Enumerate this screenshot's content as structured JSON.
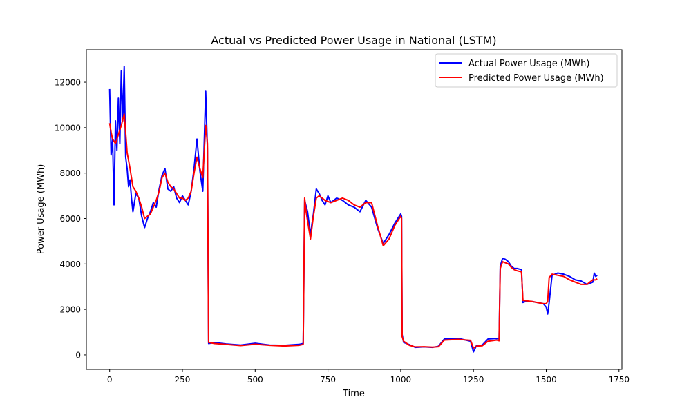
{
  "chart_data": {
    "type": "line",
    "title": "Actual vs Predicted Power Usage in National (LSTM)",
    "xlabel": "Time",
    "ylabel": "Power Usage (MWh)",
    "xlim": [
      -80,
      1760
    ],
    "ylim": [
      -640,
      13430
    ],
    "xticks": [
      0,
      250,
      500,
      750,
      1000,
      1250,
      1500,
      1750
    ],
    "xtick_labels": [
      "0",
      "250",
      "500",
      "750",
      "1000",
      "1250",
      "1500",
      "1750"
    ],
    "yticks": [
      0,
      2000,
      4000,
      6000,
      8000,
      10000,
      12000
    ],
    "ytick_labels": [
      "0",
      "2000",
      "4000",
      "6000",
      "8000",
      "10000",
      "12000"
    ],
    "grid": false,
    "legend_position": "top-right",
    "series": [
      {
        "name": "Actual Power Usage (MWh)",
        "color": "#0000ff",
        "x": [
          0,
          5,
          10,
          15,
          20,
          25,
          30,
          35,
          40,
          45,
          50,
          55,
          60,
          65,
          70,
          75,
          80,
          90,
          100,
          110,
          120,
          130,
          140,
          150,
          160,
          170,
          180,
          190,
          200,
          210,
          220,
          230,
          240,
          250,
          260,
          270,
          280,
          290,
          300,
          310,
          320,
          330,
          336,
          340,
          360,
          400,
          450,
          500,
          550,
          600,
          650,
          665,
          670,
          680,
          690,
          700,
          710,
          720,
          730,
          740,
          750,
          760,
          780,
          800,
          820,
          840,
          860,
          880,
          900,
          920,
          940,
          960,
          980,
          1000,
          1003,
          1005,
          1010,
          1030,
          1050,
          1080,
          1110,
          1130,
          1150,
          1200,
          1240,
          1250,
          1260,
          1280,
          1300,
          1330,
          1338,
          1342,
          1350,
          1360,
          1370,
          1380,
          1390,
          1400,
          1415,
          1420,
          1430,
          1450,
          1470,
          1490,
          1500,
          1505,
          1510,
          1520,
          1540,
          1560,
          1580,
          1600,
          1620,
          1640,
          1660,
          1665,
          1670,
          1675
        ],
        "y": [
          11700,
          8800,
          9500,
          6600,
          10300,
          9000,
          11300,
          9300,
          12500,
          10300,
          12700,
          8700,
          8200,
          7400,
          7700,
          6900,
          6300,
          7100,
          6900,
          6100,
          5600,
          6000,
          6300,
          6700,
          6500,
          7300,
          7900,
          8200,
          7300,
          7200,
          7400,
          6900,
          6700,
          7000,
          6800,
          6600,
          7200,
          8200,
          9500,
          8100,
          7200,
          11600,
          9000,
          500,
          540,
          480,
          430,
          510,
          430,
          420,
          460,
          500,
          6800,
          6300,
          5300,
          6200,
          7300,
          7100,
          6800,
          6600,
          7000,
          6700,
          6900,
          6800,
          6600,
          6500,
          6300,
          6800,
          6500,
          5600,
          4900,
          5300,
          5800,
          6200,
          6100,
          900,
          550,
          450,
          330,
          350,
          330,
          380,
          700,
          720,
          600,
          130,
          400,
          430,
          700,
          720,
          700,
          3900,
          4250,
          4200,
          4100,
          3900,
          3800,
          3800,
          3750,
          2300,
          2350,
          2350,
          2300,
          2250,
          2100,
          1800,
          2300,
          3500,
          3600,
          3550,
          3450,
          3300,
          3250,
          3100,
          3200,
          3600,
          3450,
          3500
        ]
      },
      {
        "name": "Predicted Power Usage (MWh)",
        "color": "#ff0000",
        "x": [
          0,
          5,
          10,
          20,
          30,
          40,
          50,
          55,
          60,
          70,
          80,
          90,
          100,
          110,
          120,
          130,
          140,
          150,
          160,
          170,
          180,
          190,
          200,
          210,
          220,
          230,
          240,
          250,
          260,
          270,
          280,
          290,
          300,
          310,
          320,
          330,
          336,
          340,
          360,
          400,
          450,
          500,
          550,
          600,
          650,
          665,
          670,
          675,
          690,
          700,
          710,
          720,
          740,
          760,
          780,
          800,
          820,
          840,
          860,
          880,
          900,
          920,
          940,
          960,
          980,
          1000,
          1003,
          1005,
          1010,
          1030,
          1050,
          1080,
          1110,
          1130,
          1150,
          1200,
          1240,
          1250,
          1260,
          1280,
          1300,
          1330,
          1338,
          1342,
          1350,
          1360,
          1370,
          1380,
          1390,
          1400,
          1415,
          1420,
          1430,
          1450,
          1470,
          1490,
          1500,
          1505,
          1510,
          1520,
          1540,
          1560,
          1580,
          1600,
          1620,
          1640,
          1660,
          1665,
          1670,
          1675
        ],
        "y": [
          10200,
          9800,
          9500,
          9300,
          9700,
          10100,
          10600,
          9800,
          8900,
          8200,
          7400,
          7200,
          6900,
          6500,
          6000,
          6100,
          6200,
          6500,
          6800,
          7200,
          7800,
          8000,
          7600,
          7400,
          7300,
          7100,
          6900,
          6900,
          6800,
          6900,
          7200,
          8000,
          8700,
          8200,
          7800,
          10100,
          9300,
          550,
          500,
          460,
          410,
          470,
          420,
          390,
          420,
          460,
          6900,
          6300,
          5100,
          6100,
          6900,
          7000,
          6800,
          6700,
          6800,
          6900,
          6800,
          6600,
          6500,
          6700,
          6700,
          5700,
          4800,
          5100,
          5700,
          6100,
          6000,
          800,
          600,
          420,
          350,
          360,
          340,
          360,
          650,
          680,
          640,
          300,
          380,
          400,
          600,
          650,
          620,
          3800,
          4100,
          4050,
          4000,
          3850,
          3750,
          3700,
          3650,
          2400,
          2380,
          2350,
          2300,
          2250,
          2250,
          2350,
          3400,
          3550,
          3500,
          3450,
          3300,
          3200,
          3100,
          3100,
          3300,
          3300,
          3300,
          3350
        ]
      }
    ]
  }
}
